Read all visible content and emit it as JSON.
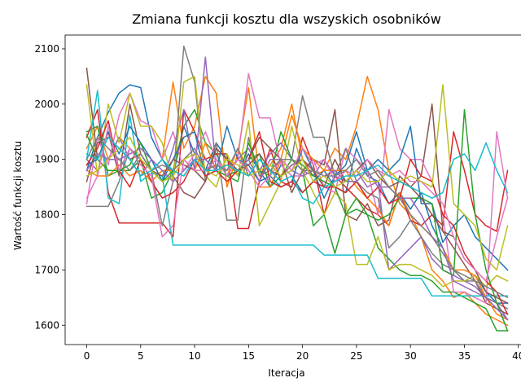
{
  "chart_data": {
    "type": "line",
    "title": "Zmiana funkcji kosztu dla wszyskich osobników",
    "xlabel": "Iteracja",
    "ylabel": "Wartość funkcji kosztu",
    "xlim": [
      -2,
      41
    ],
    "ylim": [
      1565,
      2125
    ],
    "xticks": [
      0,
      5,
      10,
      15,
      20,
      25,
      30,
      35,
      40
    ],
    "yticks": [
      1600,
      1700,
      1800,
      1900,
      2000,
      2100
    ],
    "xtick_labels": [
      "0",
      "5",
      "10",
      "15",
      "20",
      "25",
      "30",
      "35",
      "40"
    ],
    "ytick_labels": [
      "1600",
      "1700",
      "1800",
      "1900",
      "2000",
      "2100"
    ],
    "grid": false,
    "x": [
      0,
      1,
      2,
      3,
      4,
      5,
      6,
      7,
      8,
      9,
      10,
      11,
      12,
      13,
      14,
      15,
      16,
      17,
      18,
      19,
      20,
      21,
      22,
      23,
      24,
      25,
      26,
      27,
      28,
      29,
      30,
      31,
      32,
      33,
      34,
      35,
      36,
      37,
      38,
      39
    ],
    "series": [
      {
        "color": "#1f77b4",
        "values": [
          1880,
          1940,
          1985,
          2020,
          2035,
          2030,
          1940,
          1900,
          1870,
          1960,
          1910,
          1880,
          1930,
          1900,
          1870,
          1910,
          1880,
          1850,
          1890,
          1870,
          1840,
          1860,
          1880,
          1850,
          1840,
          1920,
          1870,
          1860,
          1820,
          1840,
          1810,
          1840,
          1780,
          1740,
          1700,
          1680,
          1690,
          1660,
          1640,
          1640
        ]
      },
      {
        "color": "#ff7f0e",
        "values": [
          1920,
          1960,
          1900,
          1940,
          1920,
          1900,
          1880,
          1900,
          2040,
          1920,
          1960,
          2050,
          2020,
          1850,
          1910,
          2030,
          1870,
          1890,
          1920,
          2000,
          1900,
          1870,
          1880,
          1920,
          1900,
          1960,
          2050,
          1990,
          1880,
          1820,
          1800,
          1760,
          1700,
          1680,
          1650,
          1660,
          1640,
          1620,
          1610,
          1600
        ]
      },
      {
        "color": "#2ca02c",
        "values": [
          1950,
          1960,
          1870,
          1880,
          1880,
          1900,
          1830,
          1840,
          1880,
          1960,
          1990,
          1930,
          1910,
          1870,
          1880,
          1900,
          1910,
          1850,
          1870,
          1900,
          1880,
          1780,
          1800,
          1730,
          1800,
          1810,
          1800,
          1740,
          1720,
          1700,
          1690,
          1690,
          1680,
          1660,
          1660,
          1650,
          1640,
          1630,
          1590,
          1590
        ]
      },
      {
        "color": "#d62728",
        "values": [
          1940,
          1990,
          1840,
          1785,
          1785,
          1785,
          1785,
          1785,
          1760,
          1990,
          1950,
          1900,
          1910,
          1910,
          1775,
          1775,
          1860,
          1920,
          1860,
          1850,
          1940,
          1890,
          1800,
          1870,
          1850,
          1830,
          1810,
          1800,
          1780,
          1840,
          1790,
          1780,
          1800,
          1780,
          1950,
          1880,
          1800,
          1780,
          1770,
          1880
        ]
      },
      {
        "color": "#9467bd",
        "values": [
          1900,
          1880,
          1900,
          1940,
          1900,
          1870,
          1900,
          1860,
          1920,
          1990,
          1880,
          2085,
          1880,
          1870,
          1900,
          1920,
          1880,
          1910,
          1930,
          1900,
          1880,
          1870,
          1900,
          1870,
          1860,
          1880,
          1850,
          1860,
          1700,
          1720,
          1740,
          1760,
          1720,
          1700,
          1690,
          1680,
          1670,
          1650,
          1640,
          1610
        ]
      },
      {
        "color": "#8c564b",
        "values": [
          2065,
          1900,
          1950,
          1870,
          2000,
          1910,
          1880,
          1860,
          1870,
          1840,
          1830,
          1860,
          1920,
          1900,
          1880,
          1900,
          1940,
          1920,
          1900,
          1840,
          1880,
          1900,
          1890,
          1990,
          1800,
          1790,
          1820,
          1780,
          1790,
          1870,
          1850,
          1870,
          2000,
          1770,
          1740,
          1710,
          1680,
          1640,
          1630,
          1620
        ]
      },
      {
        "color": "#e377c2",
        "values": [
          1820,
          1940,
          1890,
          1980,
          2020,
          1970,
          1960,
          1900,
          1950,
          1880,
          1910,
          1950,
          1900,
          1880,
          1900,
          2055,
          1975,
          1975,
          1890,
          1870,
          1870,
          1900,
          1850,
          1840,
          1920,
          1900,
          1880,
          1800,
          1990,
          1920,
          1900,
          1900,
          1860,
          1800,
          1660,
          1660,
          1650,
          1640,
          1950,
          1830
        ]
      },
      {
        "color": "#7f7f7f",
        "values": [
          1815,
          1815,
          1815,
          1860,
          1920,
          1900,
          1880,
          1780,
          1860,
          2105,
          2040,
          1860,
          1930,
          1790,
          1790,
          1940,
          1870,
          1880,
          1900,
          1900,
          2015,
          1940,
          1940,
          1870,
          1920,
          1860,
          1840,
          1830,
          1740,
          1760,
          1790,
          1760,
          1730,
          1710,
          1700,
          1680,
          1680,
          1650,
          1640,
          1630
        ]
      },
      {
        "color": "#bcbd22",
        "values": [
          2035,
          1870,
          2000,
          1930,
          2020,
          1960,
          1960,
          1930,
          1860,
          2040,
          2050,
          1870,
          1850,
          1910,
          1870,
          1970,
          1780,
          1820,
          1860,
          1960,
          1880,
          1840,
          1800,
          1840,
          1820,
          1710,
          1710,
          1760,
          1700,
          1710,
          1710,
          1700,
          1690,
          1670,
          1680,
          1680,
          1690,
          1670,
          1690,
          1680
        ]
      },
      {
        "color": "#17becf",
        "values": [
          1900,
          2025,
          1830,
          1820,
          1980,
          1860,
          1875,
          1870,
          1745,
          1745,
          1745,
          1745,
          1745,
          1745,
          1745,
          1745,
          1745,
          1745,
          1745,
          1745,
          1745,
          1745,
          1727,
          1727,
          1727,
          1727,
          1727,
          1685,
          1685,
          1685,
          1685,
          1685,
          1653,
          1653,
          1653,
          1653,
          1653,
          1653,
          1653,
          1653
        ]
      },
      {
        "color": "#1f77b4",
        "values": [
          1890,
          1900,
          1950,
          1910,
          1960,
          1930,
          1900,
          1860,
          1900,
          1940,
          1950,
          1870,
          1880,
          1960,
          1900,
          1890,
          1860,
          1870,
          1850,
          1860,
          1920,
          1880,
          1830,
          1870,
          1890,
          1950,
          1880,
          1900,
          1880,
          1900,
          1960,
          1820,
          1820,
          1750,
          1780,
          1800,
          1760,
          1740,
          1720,
          1700
        ]
      },
      {
        "color": "#ff7f0e",
        "values": [
          1880,
          1870,
          1870,
          1890,
          1870,
          1880,
          1860,
          1880,
          1880,
          1900,
          1880,
          1930,
          1880,
          1870,
          1920,
          1880,
          1850,
          1850,
          1900,
          1980,
          1920,
          1900,
          1880,
          1880,
          1880,
          1850,
          1830,
          1810,
          1780,
          1840,
          1800,
          1780,
          1760,
          1740,
          1700,
          1700,
          1690,
          1650,
          1620,
          1610
        ]
      },
      {
        "color": "#2ca02c",
        "values": [
          1945,
          1900,
          1880,
          1880,
          1890,
          1930,
          1880,
          1860,
          1880,
          1870,
          1900,
          1900,
          1880,
          1870,
          1860,
          1930,
          1880,
          1870,
          1950,
          1900,
          1890,
          1870,
          1860,
          1850,
          1800,
          1830,
          1800,
          1790,
          1800,
          1830,
          1830,
          1830,
          1820,
          1700,
          1690,
          1990,
          1800,
          1700,
          1640,
          1590
        ]
      },
      {
        "color": "#d62728",
        "values": [
          1890,
          1920,
          1970,
          1880,
          1850,
          1900,
          1860,
          1830,
          1840,
          1860,
          1900,
          1870,
          1880,
          1860,
          1880,
          1900,
          1950,
          1860,
          1850,
          1860,
          1840,
          1860,
          1850,
          1850,
          1840,
          1860,
          1830,
          1850,
          1820,
          1830,
          1900,
          1870,
          1860,
          1800,
          1780,
          1730,
          1700,
          1680,
          1660,
          1620
        ]
      },
      {
        "color": "#9467bd",
        "values": [
          1880,
          1910,
          1900,
          1900,
          1910,
          1920,
          1900,
          1880,
          1860,
          1880,
          1900,
          1900,
          1880,
          1890,
          1880,
          1900,
          1860,
          1900,
          1900,
          1880,
          1870,
          1880,
          1870,
          1880,
          1860,
          1860,
          1880,
          1850,
          1850,
          1830,
          1830,
          1800,
          1760,
          1740,
          1680,
          1670,
          1660,
          1650,
          1630,
          1610
        ]
      },
      {
        "color": "#8c564b",
        "values": [
          1860,
          1930,
          1940,
          1920,
          1900,
          1910,
          1880,
          1870,
          1900,
          1890,
          1880,
          1860,
          1920,
          1900,
          1880,
          1890,
          1910,
          1880,
          1870,
          1890,
          1900,
          1880,
          1850,
          1900,
          1860,
          1880,
          1900,
          1870,
          1850,
          1860,
          1850,
          1830,
          1800,
          1770,
          1760,
          1720,
          1700,
          1660,
          1650,
          1640
        ]
      },
      {
        "color": "#e377c2",
        "values": [
          1830,
          1870,
          1960,
          1880,
          1920,
          1890,
          1870,
          1760,
          1780,
          1900,
          1880,
          1880,
          1900,
          1870,
          1900,
          1880,
          1850,
          1870,
          1900,
          1880,
          1920,
          1890,
          1900,
          1860,
          1880,
          1870,
          1900,
          1880,
          1870,
          1880,
          1860,
          1860,
          1840,
          1820,
          1760,
          1720,
          1700,
          1680,
          1760,
          1830
        ]
      },
      {
        "color": "#7f7f7f",
        "values": [
          1900,
          1940,
          1920,
          1900,
          1880,
          1910,
          1880,
          1890,
          1880,
          1900,
          1920,
          1880,
          1890,
          1880,
          1920,
          1870,
          1900,
          1880,
          1900,
          1900,
          1880,
          1880,
          1870,
          1870,
          1880,
          1900,
          1870,
          1880,
          1850,
          1830,
          1800,
          1780,
          1760,
          1730,
          1700,
          1690,
          1680,
          1670,
          1660,
          1650
        ]
      },
      {
        "color": "#bcbd22",
        "values": [
          1870,
          1880,
          1900,
          1920,
          1940,
          1900,
          1880,
          1860,
          1870,
          1900,
          1910,
          1880,
          1870,
          1900,
          1890,
          1870,
          1880,
          1890,
          1870,
          1880,
          1900,
          1860,
          1870,
          1850,
          1860,
          1880,
          1860,
          1860,
          1880,
          1860,
          1870,
          1860,
          1850,
          2035,
          1820,
          1800,
          1780,
          1720,
          1700,
          1780
        ]
      },
      {
        "color": "#17becf",
        "values": [
          1910,
          1900,
          1940,
          1920,
          1900,
          1870,
          1880,
          1900,
          1880,
          1870,
          1900,
          1880,
          1880,
          1890,
          1880,
          1870,
          1900,
          1880,
          1860,
          1870,
          1830,
          1820,
          1850,
          1860,
          1870,
          1870,
          1880,
          1890,
          1870,
          1860,
          1850,
          1840,
          1830,
          1840,
          1900,
          1910,
          1880,
          1930,
          1880,
          1840
        ]
      }
    ]
  }
}
